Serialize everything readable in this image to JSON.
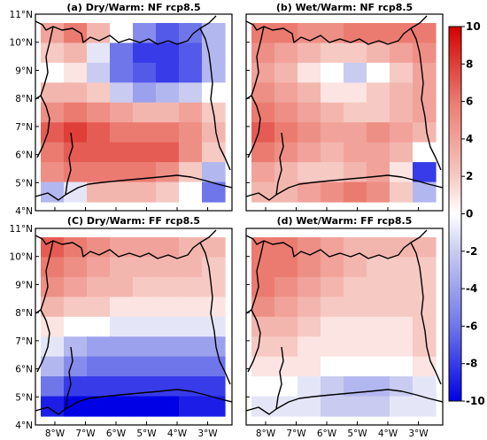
{
  "figure": {
    "colorbar": {
      "ticks": [
        "10",
        "8",
        "6",
        "4",
        "2",
        "0",
        "-2",
        "-4",
        "-6",
        "-8",
        "-10"
      ],
      "range": [
        -10,
        10
      ],
      "colors": {
        "min": "#0000e6",
        "neg_mid": "#6f76ea",
        "neg_light": "#c9ccf0",
        "zero": "#ffffff",
        "pos_light": "#f6c9c3",
        "pos_mid": "#eb7b70",
        "max": "#d40000"
      }
    },
    "lat_labels": [
      "11°N",
      "10°N",
      "9°N",
      "8°N",
      "7°N",
      "6°N",
      "5°N",
      "4°N"
    ],
    "lon_labels": [
      "8°W",
      "7°W",
      "6°W",
      "5°W",
      "4°W",
      "3°W"
    ],
    "panels": [
      {
        "title": "(a) Dry/Warm: NF rcp8.5",
        "field": [
          [
            4,
            6,
            3,
            0,
            -5,
            -7,
            -6,
            -3
          ],
          [
            2,
            3,
            -1,
            -6,
            -8,
            -8,
            -7,
            -3
          ],
          [
            0,
            1,
            -2,
            -6,
            -7,
            -8,
            -7,
            -3
          ],
          [
            3,
            3,
            2,
            -2,
            -4,
            -3,
            -2,
            0
          ],
          [
            5,
            6,
            5,
            4,
            3,
            3,
            4,
            2
          ],
          [
            7,
            8,
            7,
            6,
            6,
            6,
            5,
            3
          ],
          [
            6,
            7,
            7,
            7,
            7,
            7,
            5,
            2
          ],
          [
            5,
            6,
            6,
            6,
            6,
            5,
            2,
            -3
          ],
          [
            -3,
            -1,
            3,
            3,
            3,
            2,
            0,
            -6
          ]
        ]
      },
      {
        "title": "(b)  Wet/Warm: NF rcp8.5",
        "field": [
          [
            6,
            6,
            5,
            5,
            6,
            6,
            6,
            6
          ],
          [
            5,
            4,
            3,
            2,
            2,
            3,
            4,
            5
          ],
          [
            4,
            3,
            1,
            0,
            -2,
            0,
            2,
            4
          ],
          [
            5,
            4,
            3,
            1,
            1,
            2,
            3,
            4
          ],
          [
            6,
            5,
            4,
            3,
            2,
            2,
            3,
            4
          ],
          [
            7,
            6,
            5,
            4,
            4,
            5,
            4,
            3
          ],
          [
            6,
            5,
            4,
            3,
            4,
            4,
            3,
            0
          ],
          [
            4,
            3,
            2,
            2,
            3,
            4,
            1,
            -8
          ],
          [
            3,
            3,
            4,
            5,
            6,
            5,
            2,
            -3
          ]
        ]
      },
      {
        "title": "(C)  Dry/Warm: FF rcp8.5",
        "field": [
          [
            7,
            6,
            5,
            4,
            4,
            4,
            3,
            3
          ],
          [
            6,
            5,
            4,
            3,
            3,
            3,
            3,
            2
          ],
          [
            5,
            4,
            3,
            3,
            2,
            2,
            2,
            2
          ],
          [
            3,
            2,
            2,
            1,
            1,
            1,
            1,
            1
          ],
          [
            1,
            0,
            0,
            -1,
            -1,
            -1,
            -1,
            -1
          ],
          [
            -1,
            -3,
            -4,
            -4,
            -4,
            -4,
            -4,
            -4
          ],
          [
            -3,
            -5,
            -6,
            -6,
            -6,
            -6,
            -6,
            -6
          ],
          [
            -6,
            -8,
            -8,
            -8,
            -8,
            -8,
            -8,
            -8
          ],
          [
            -9,
            -10,
            -10,
            -10,
            -10,
            -10,
            -9,
            -9
          ]
        ]
      },
      {
        "title": "(d)  Wet/Warm: FF rcp8.5",
        "field": [
          [
            6,
            6,
            5,
            4,
            3,
            3,
            3,
            3
          ],
          [
            6,
            6,
            5,
            4,
            3,
            2,
            2,
            2
          ],
          [
            6,
            5,
            4,
            3,
            2,
            2,
            2,
            2
          ],
          [
            5,
            4,
            3,
            2,
            2,
            2,
            2,
            2
          ],
          [
            3,
            3,
            2,
            1,
            1,
            1,
            1,
            2
          ],
          [
            2,
            2,
            1,
            1,
            1,
            1,
            1,
            2
          ],
          [
            1,
            1,
            1,
            0,
            0,
            0,
            0,
            1
          ],
          [
            0,
            0,
            -1,
            -2,
            -3,
            -3,
            -2,
            -1
          ],
          [
            -1,
            -1,
            -1,
            -2,
            -2,
            -2,
            -1,
            -1
          ]
        ]
      }
    ]
  }
}
